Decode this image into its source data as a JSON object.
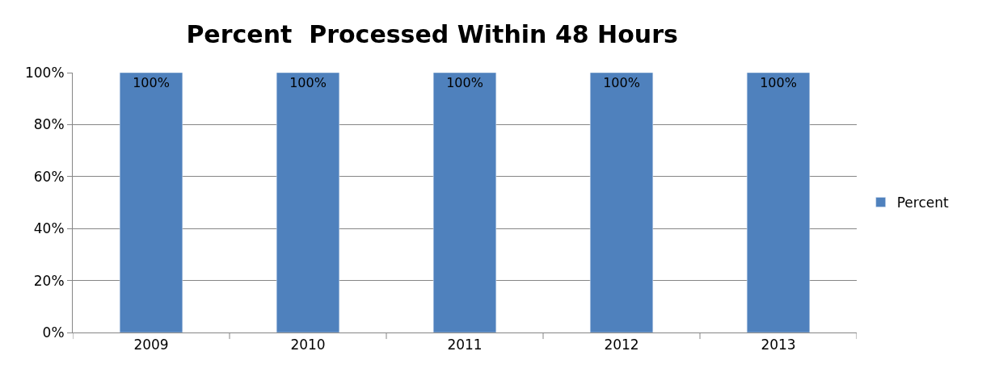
{
  "chart_data": {
    "type": "bar",
    "title": "Percent  Processed Within 48 Hours",
    "categories": [
      "2009",
      "2010",
      "2011",
      "2012",
      "2013"
    ],
    "series": [
      {
        "name": "Percent",
        "color": "#4f81bd",
        "values": [
          100,
          100,
          100,
          100,
          100
        ],
        "value_labels": [
          "100%",
          "100%",
          "100%",
          "100%",
          "100%"
        ]
      }
    ],
    "ylim": [
      0,
      100
    ],
    "yticks": [
      {
        "value": 0,
        "label": "0%"
      },
      {
        "value": 20,
        "label": "20%"
      },
      {
        "value": 40,
        "label": "40%"
      },
      {
        "value": 60,
        "label": "60%"
      },
      {
        "value": 80,
        "label": "80%"
      },
      {
        "value": 100,
        "label": "100%"
      }
    ],
    "grid": "y",
    "legend": "right"
  }
}
